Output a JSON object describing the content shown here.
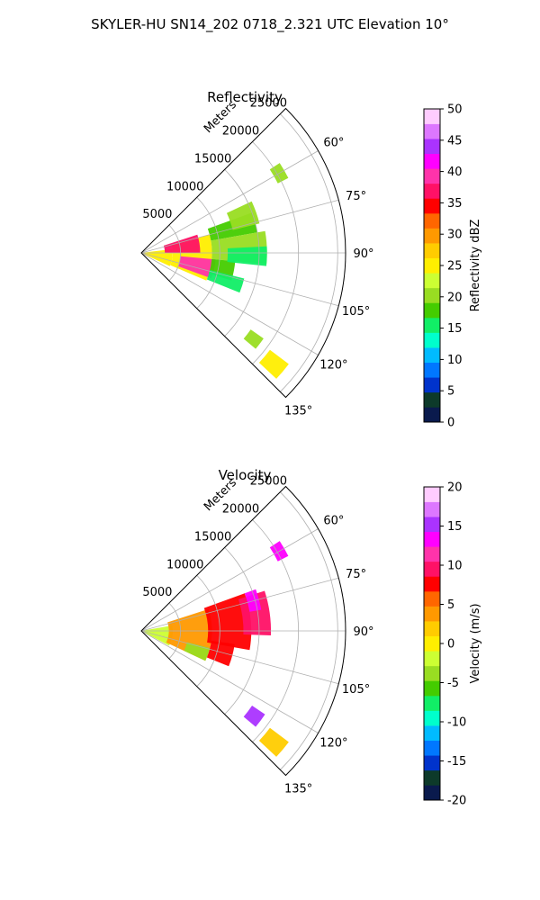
{
  "figure": {
    "suptitle": "SKYLER-HU  SN14_202  0718_2.321 UTC Elevation 10°"
  },
  "chart_data": [
    {
      "type": "heatmap",
      "subtype": "polar-sector-radar-ppi",
      "title": "Reflectivity",
      "radial_label": "Meters",
      "radial_ticks": [
        5000,
        10000,
        15000,
        20000,
        25000
      ],
      "radial_range": [
        0,
        26000
      ],
      "azimuth_range_deg": [
        45,
        135
      ],
      "azimuth_ticks": [
        "60°",
        "75°",
        "90°",
        "105°",
        "120°",
        "135°"
      ],
      "azimuth_tick_values": [
        60,
        75,
        90,
        105,
        120,
        135
      ],
      "grid": true,
      "colorbar": {
        "label": "Reflectivity dBZ",
        "range": [
          0,
          50
        ],
        "ticks": [
          0,
          5,
          10,
          15,
          20,
          25,
          30,
          35,
          40,
          45,
          50
        ],
        "colors": [
          "#0a1a4d",
          "#0d3a2a",
          "#0033cc",
          "#0077ff",
          "#00bbff",
          "#00ffcc",
          "#11ee66",
          "#44cc00",
          "#99dd22",
          "#ccff33",
          "#ffee00",
          "#ffcc00",
          "#ff9900",
          "#ff6600",
          "#ff0000",
          "#ff1166",
          "#ff33aa",
          "#ff00ff",
          "#aa33ff",
          "#dd77ff",
          "#ffccff"
        ]
      },
      "echo_regions": [
        {
          "az": [
            83,
            115
          ],
          "r": [
            0,
            4000
          ],
          "value": 24
        },
        {
          "az": [
            75,
            113
          ],
          "r": [
            4000,
            9000
          ],
          "value": 25
        },
        {
          "az": [
            72,
            90
          ],
          "r": [
            3000,
            7500
          ],
          "value": 36
        },
        {
          "az": [
            95,
            110
          ],
          "r": [
            5000,
            9500
          ],
          "value": 40
        },
        {
          "az": [
            70,
            80
          ],
          "r": [
            9000,
            15000
          ],
          "value": 17
        },
        {
          "az": [
            65,
            76
          ],
          "r": [
            12000,
            15500
          ],
          "value": 20
        },
        {
          "az": [
            80,
            95
          ],
          "r": [
            9000,
            16000
          ],
          "value": 21
        },
        {
          "az": [
            95,
            107
          ],
          "r": [
            9000,
            12000
          ],
          "value": 18
        },
        {
          "az": [
            87,
            96
          ],
          "r": [
            11000,
            16000
          ],
          "value": 15
        },
        {
          "az": [
            104,
            112
          ],
          "r": [
            9000,
            13500
          ],
          "value": 16
        },
        {
          "az": [
            57,
            63
          ],
          "r": [
            19500,
            21000
          ],
          "value": 21
        },
        {
          "az": [
            125,
            130
          ],
          "r": [
            17000,
            19000
          ],
          "value": 20
        },
        {
          "az": [
            127,
            133
          ],
          "r": [
            20500,
            23500
          ],
          "value": 24
        }
      ]
    },
    {
      "type": "heatmap",
      "subtype": "polar-sector-radar-ppi",
      "title": "Velocity",
      "radial_label": "Meters",
      "radial_ticks": [
        5000,
        10000,
        15000,
        20000,
        25000
      ],
      "radial_range": [
        0,
        26000
      ],
      "azimuth_range_deg": [
        45,
        135
      ],
      "azimuth_ticks": [
        "60°",
        "75°",
        "90°",
        "105°",
        "120°",
        "135°"
      ],
      "azimuth_tick_values": [
        60,
        75,
        90,
        105,
        120,
        135
      ],
      "grid": true,
      "colorbar": {
        "label": "Velocity (m/s)",
        "range": [
          -20,
          20
        ],
        "ticks": [
          -20,
          -15,
          -10,
          -5,
          0,
          5,
          10,
          15,
          20
        ],
        "colors": [
          "#0a1a4d",
          "#0d3a2a",
          "#0033cc",
          "#0077ff",
          "#00bbff",
          "#00ffcc",
          "#11ee66",
          "#44cc00",
          "#99dd22",
          "#ccff33",
          "#ffee00",
          "#ffcc00",
          "#ff9900",
          "#ff6600",
          "#ff0000",
          "#ff1166",
          "#ff33aa",
          "#ff00ff",
          "#aa33ff",
          "#dd77ff",
          "#ffccff"
        ]
      },
      "echo_regions": [
        {
          "az": [
            80,
            118
          ],
          "r": [
            0,
            4000
          ],
          "value": -2
        },
        {
          "az": [
            72,
            115
          ],
          "r": [
            3500,
            9000
          ],
          "value": 3
        },
        {
          "az": [
            70,
            100
          ],
          "r": [
            8500,
            14000
          ],
          "value": 7
        },
        {
          "az": [
            72,
            92
          ],
          "r": [
            13000,
            16500
          ],
          "value": 10
        },
        {
          "az": [
            70,
            80
          ],
          "r": [
            14000,
            15500
          ],
          "value": 14
        },
        {
          "az": [
            98,
            112
          ],
          "r": [
            9000,
            12000
          ],
          "value": 8
        },
        {
          "az": [
            104,
            115
          ],
          "r": [
            6000,
            9000
          ],
          "value": -4
        },
        {
          "az": [
            57,
            63
          ],
          "r": [
            19500,
            21000
          ],
          "value": 14
        },
        {
          "az": [
            124,
            130
          ],
          "r": [
            17000,
            19000
          ],
          "value": 15
        },
        {
          "az": [
            127,
            133
          ],
          "r": [
            20500,
            23500
          ],
          "value": 1
        }
      ]
    }
  ]
}
